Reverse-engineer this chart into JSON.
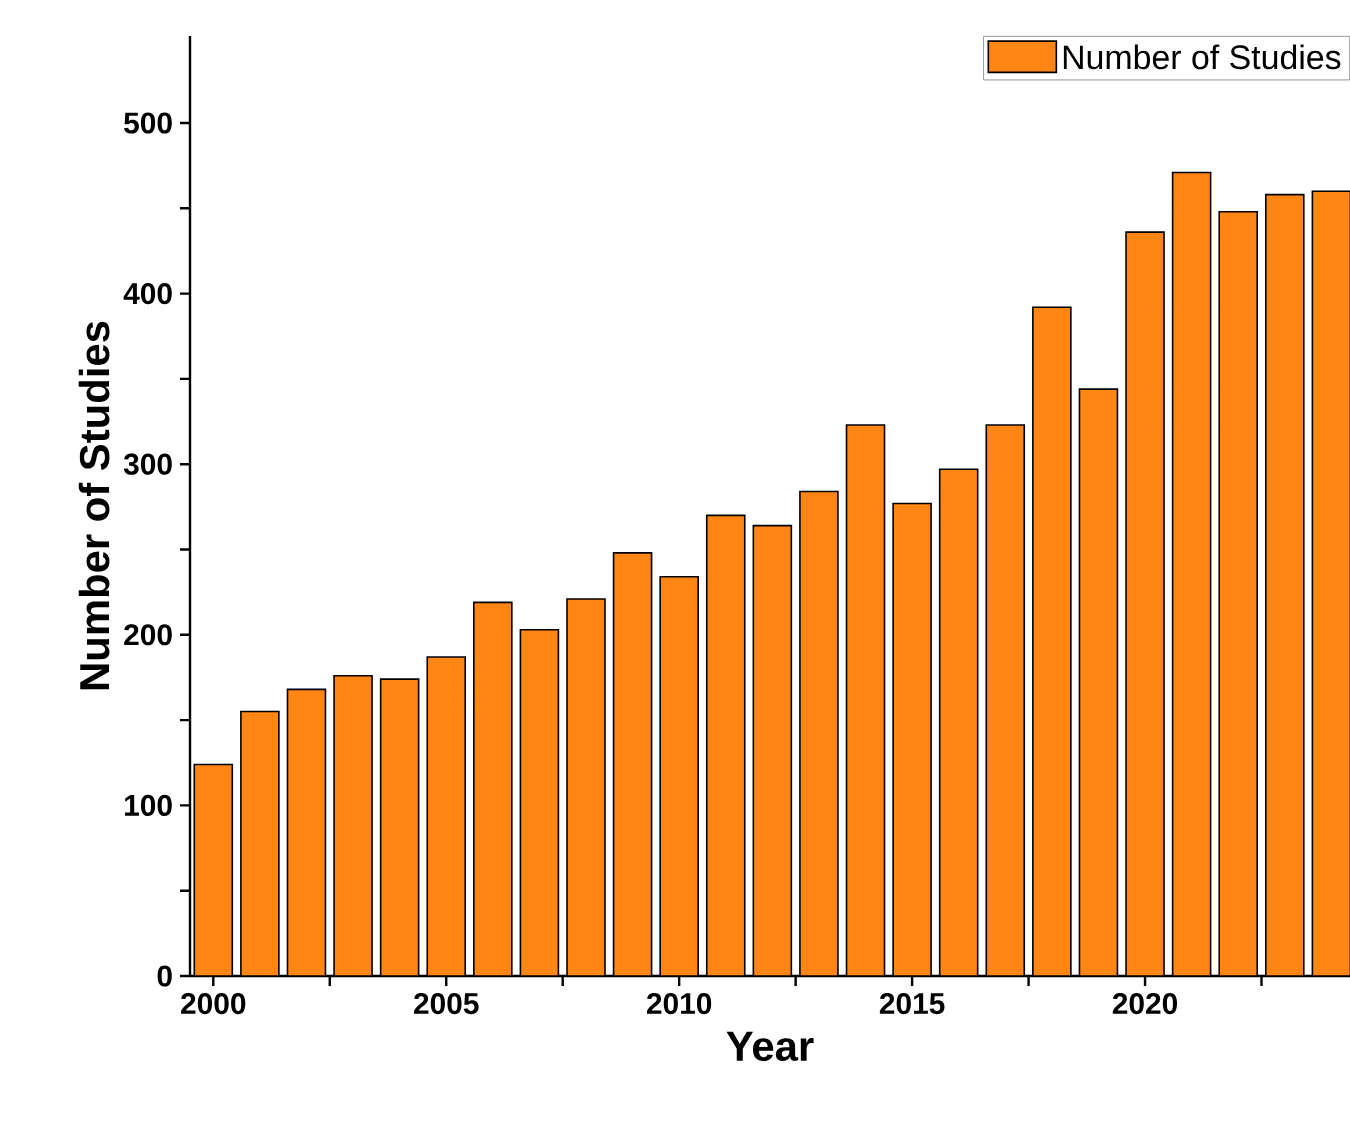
{
  "chart_data": {
    "type": "bar",
    "xlabel": "Year",
    "ylabel": "Number of Studies",
    "x": [
      2000,
      2001,
      2002,
      2003,
      2004,
      2005,
      2006,
      2007,
      2008,
      2009,
      2010,
      2011,
      2012,
      2013,
      2014,
      2015,
      2016,
      2017,
      2018,
      2019,
      2020,
      2021,
      2022,
      2023,
      2024
    ],
    "series": [
      {
        "name": "Number of Studies",
        "color": "#ff8514",
        "values": [
          124,
          155,
          168,
          176,
          174,
          187,
          219,
          203,
          221,
          248,
          234,
          270,
          264,
          284,
          323,
          277,
          297,
          323,
          392,
          344,
          436,
          471,
          448,
          458,
          460
        ]
      }
    ],
    "xlim": [
      1999.5,
      2024.4
    ],
    "ylim": [
      0,
      551
    ],
    "xticks": [
      2000,
      {
        "value": 2002.5,
        "label": null
      },
      2005,
      {
        "value": 2007.5,
        "label": null
      },
      2010,
      {
        "value": 2012.5,
        "label": null
      },
      2015,
      {
        "value": 2017.5,
        "label": null
      },
      2020,
      {
        "value": 2022.5,
        "label": null
      }
    ],
    "yticks": [
      0,
      {
        "value": 50,
        "label": null
      },
      100,
      {
        "value": 150,
        "label": null
      },
      200,
      {
        "value": 250,
        "label": null
      },
      300,
      {
        "value": 350,
        "label": null
      },
      400,
      {
        "value": 450,
        "label": null
      },
      500
    ],
    "legend": "top right",
    "grid": false
  }
}
